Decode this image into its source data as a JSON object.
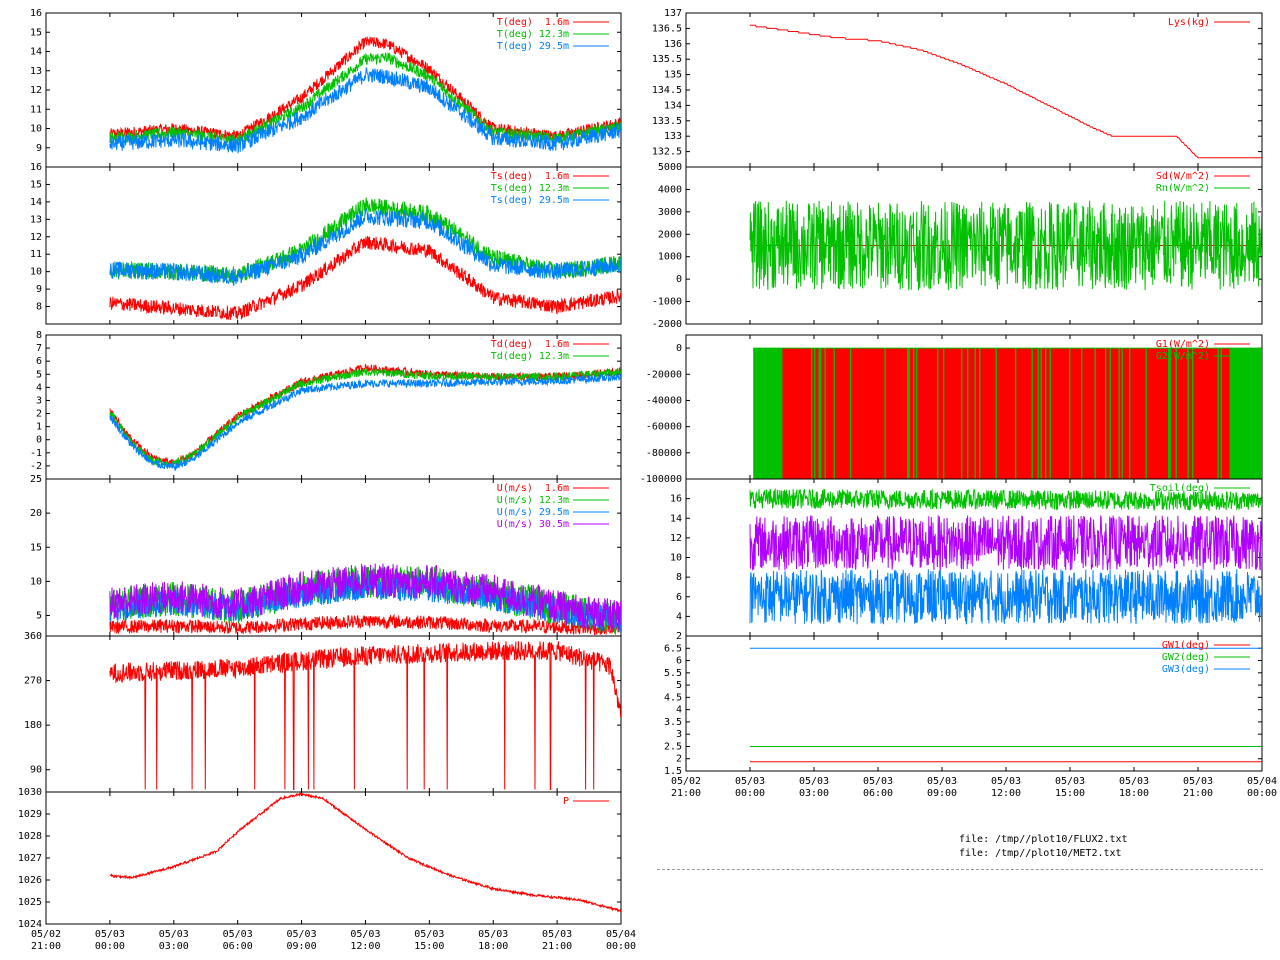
{
  "colors": {
    "red": "#ff0000",
    "green": "#00c000",
    "blue": "#0080ff",
    "purple": "#b000ff",
    "black": "#000000"
  },
  "files": [
    "file: /tmp//plot10/FLUX2.txt",
    "file: /tmp//plot10/MET2.txt"
  ],
  "x_axis": {
    "ticks": [
      {
        "date": "05/02",
        "time": "21:00",
        "hour": -3
      },
      {
        "date": "05/03",
        "time": "00:00",
        "hour": 0
      },
      {
        "date": "05/03",
        "time": "03:00",
        "hour": 3
      },
      {
        "date": "05/03",
        "time": "06:00",
        "hour": 6
      },
      {
        "date": "05/03",
        "time": "09:00",
        "hour": 9
      },
      {
        "date": "05/03",
        "time": "12:00",
        "hour": 12
      },
      {
        "date": "05/03",
        "time": "15:00",
        "hour": 15
      },
      {
        "date": "05/03",
        "time": "18:00",
        "hour": 18
      },
      {
        "date": "05/03",
        "time": "21:00",
        "hour": 21
      },
      {
        "date": "05/04",
        "time": "00:00",
        "hour": 24
      }
    ],
    "range": [
      -3,
      24
    ]
  },
  "chart_data": [
    {
      "id": "temp",
      "type": "line",
      "ylim": [
        8,
        16
      ],
      "yticks": [
        9,
        10,
        11,
        12,
        13,
        14,
        15,
        16
      ],
      "grid": false,
      "legend": "top-right",
      "series": [
        {
          "name": "T(deg)  1.6m",
          "color": "red",
          "x": [
            0,
            3,
            6,
            9,
            12,
            13,
            15,
            18,
            21,
            24
          ],
          "y": [
            9.7,
            10.0,
            9.6,
            11.6,
            14.5,
            14.4,
            13.1,
            10.0,
            9.6,
            10.3
          ],
          "noise": 0.3
        },
        {
          "name": "T(deg) 12.3m",
          "color": "green",
          "x": [
            0,
            3,
            6,
            9,
            12,
            13,
            15,
            18,
            21,
            24
          ],
          "y": [
            9.5,
            9.8,
            9.4,
            11.1,
            13.6,
            13.7,
            12.7,
            9.8,
            9.5,
            10.1
          ],
          "noise": 0.3
        },
        {
          "name": "T(deg) 29.5m",
          "color": "blue",
          "x": [
            0,
            3,
            6,
            9,
            12,
            13,
            15,
            18,
            21,
            24
          ],
          "y": [
            9.2,
            9.4,
            9.1,
            10.6,
            12.8,
            12.7,
            12.1,
            9.5,
            9.2,
            9.9
          ],
          "noise": 0.4
        }
      ]
    },
    {
      "id": "tsurf",
      "type": "line",
      "ylim": [
        7,
        16
      ],
      "yticks": [
        8,
        9,
        10,
        11,
        12,
        13,
        14,
        15,
        16
      ],
      "grid": false,
      "legend": "top-right",
      "series": [
        {
          "name": "Ts(deg)  1.6m",
          "color": "red",
          "x": [
            0,
            3,
            6,
            9,
            12,
            15,
            18,
            21,
            24
          ],
          "y": [
            8.2,
            7.9,
            7.6,
            9.2,
            11.7,
            11.2,
            8.5,
            8.0,
            8.6
          ],
          "noise": 0.4
        },
        {
          "name": "Ts(deg) 12.3m",
          "color": "green",
          "x": [
            0,
            3,
            6,
            9,
            12,
            15,
            18,
            21,
            24
          ],
          "y": [
            10.1,
            10.0,
            9.8,
            11.2,
            13.8,
            13.3,
            10.8,
            10.0,
            10.5
          ],
          "noise": 0.5
        },
        {
          "name": "Ts(deg) 29.5m",
          "color": "blue",
          "x": [
            0,
            3,
            6,
            9,
            12,
            15,
            18,
            21,
            24
          ],
          "y": [
            10.1,
            10.0,
            9.7,
            10.9,
            13.2,
            12.9,
            10.4,
            10.0,
            10.4
          ],
          "noise": 0.5
        }
      ]
    },
    {
      "id": "dew",
      "type": "line",
      "ylim": [
        -3,
        8
      ],
      "yticks": [
        -2,
        -1,
        0,
        1,
        2,
        3,
        4,
        5,
        6,
        7,
        8
      ],
      "grid": false,
      "legend": "top-right",
      "series": [
        {
          "name": "Td(deg)  1.6m",
          "color": "red",
          "x": [
            0,
            1,
            2,
            3,
            4,
            6,
            9,
            12,
            15,
            18,
            21,
            24
          ],
          "y": [
            2.2,
            0.0,
            -1.4,
            -1.8,
            -1.0,
            1.8,
            4.4,
            5.5,
            5.0,
            4.8,
            4.8,
            5.2
          ],
          "noise": 0.3
        },
        {
          "name": "Td(deg) 12.3m",
          "color": "green",
          "x": [
            0,
            1,
            2,
            3,
            4,
            6,
            9,
            12,
            15,
            18,
            21,
            24
          ],
          "y": [
            2.1,
            -0.2,
            -1.6,
            -1.9,
            -1.1,
            1.7,
            4.3,
            5.2,
            4.9,
            4.8,
            4.8,
            5.2
          ],
          "noise": 0.3
        },
        {
          "name": "",
          "color": "blue",
          "x": [
            0,
            1,
            2,
            3,
            4,
            6,
            9,
            12,
            15,
            18,
            21,
            24
          ],
          "y": [
            1.8,
            -0.4,
            -1.8,
            -2.1,
            -1.4,
            1.3,
            3.8,
            4.3,
            4.3,
            4.4,
            4.5,
            4.8
          ],
          "noise": 0.3
        }
      ]
    },
    {
      "id": "wind",
      "type": "line",
      "ylim": [
        2,
        25
      ],
      "yticks": [
        5,
        10,
        15,
        20,
        25
      ],
      "grid": false,
      "legend": "top-right",
      "series": [
        {
          "name": "U(m/s)  1.6m",
          "color": "red",
          "x": [
            0,
            3,
            6,
            9,
            12,
            15,
            18,
            21,
            24
          ],
          "y": [
            3.3,
            3.5,
            3.2,
            3.8,
            4.2,
            4.0,
            3.5,
            3.3,
            3.0
          ],
          "noise": 1.0
        },
        {
          "name": "U(m/s) 12.3m",
          "color": "green",
          "x": [
            0,
            3,
            6,
            9,
            12,
            15,
            18,
            21,
            24
          ],
          "y": [
            6.5,
            7.5,
            6.2,
            8.8,
            10.0,
            9.8,
            8.2,
            6.0,
            4.5
          ],
          "noise": 2.5
        },
        {
          "name": "U(m/s) 29.5m",
          "color": "blue",
          "x": [
            0,
            3,
            6,
            9,
            12,
            15,
            18,
            21,
            24
          ],
          "y": [
            6.0,
            7.0,
            6.0,
            8.2,
            9.2,
            9.0,
            7.7,
            5.7,
            4.2
          ],
          "noise": 2.0
        },
        {
          "name": "U(m/s) 30.5m",
          "color": "purple",
          "x": [
            0,
            3,
            6,
            9,
            12,
            15,
            18,
            21,
            24
          ],
          "y": [
            6.8,
            7.8,
            6.5,
            9.0,
            10.2,
            10.0,
            8.5,
            6.3,
            4.7
          ],
          "noise": 2.5
        }
      ]
    },
    {
      "id": "winddir",
      "type": "line",
      "ylim": [
        45,
        360
      ],
      "yticks": [
        90,
        180,
        270,
        360
      ],
      "grid": false,
      "legend": "top-right",
      "series": [
        {
          "name": "",
          "color": "red",
          "x": [
            0,
            3,
            6,
            9,
            12,
            15,
            18,
            21,
            23.5,
            24
          ],
          "y": [
            285,
            290,
            295,
            310,
            320,
            325,
            330,
            330,
            300,
            200
          ],
          "noise": 20
        }
      ]
    },
    {
      "id": "pressure",
      "type": "line",
      "ylim": [
        1024,
        1030
      ],
      "yticks": [
        1024,
        1025,
        1026,
        1027,
        1028,
        1029,
        1030
      ],
      "grid": false,
      "legend": "top-right",
      "series": [
        {
          "name": "P",
          "color": "red",
          "x": [
            0,
            1,
            3,
            5,
            6,
            8,
            9,
            10,
            12,
            14,
            16,
            18,
            20,
            22,
            24
          ],
          "y": [
            1026.2,
            1026.1,
            1026.6,
            1027.3,
            1028.2,
            1029.7,
            1029.9,
            1029.7,
            1028.3,
            1027.0,
            1026.2,
            1025.6,
            1025.3,
            1025.1,
            1024.6
          ],
          "noise": 0.05
        }
      ]
    },
    {
      "id": "lys",
      "type": "line",
      "ylim": [
        132,
        137
      ],
      "yticks": [
        132.5,
        133,
        133.5,
        134,
        134.5,
        135,
        135.5,
        136,
        136.5,
        137
      ],
      "grid": false,
      "legend": "top-right",
      "series": [
        {
          "name": "Lys(kg)",
          "color": "red",
          "x": [
            0,
            2,
            4,
            6,
            8,
            10,
            12,
            14,
            16,
            17,
            19,
            20,
            21,
            24
          ],
          "y": [
            136.6,
            136.4,
            136.2,
            136.1,
            135.8,
            135.3,
            134.7,
            134.0,
            133.3,
            133.0,
            133.0,
            133.0,
            132.3,
            132.3
          ],
          "noise": 0
        }
      ]
    },
    {
      "id": "rad",
      "type": "line",
      "ylim": [
        -2000,
        5000
      ],
      "yticks": [
        -2000,
        -1000,
        0,
        1000,
        2000,
        3000,
        4000,
        5000
      ],
      "grid": false,
      "legend": "top-right",
      "series": [
        {
          "name": "Sd(W/m^2)",
          "color": "red",
          "x": [
            0,
            24
          ],
          "y": [
            1500,
            1500
          ],
          "noise": 0
        },
        {
          "name": "Rn(W/m^2)",
          "color": "green",
          "x": [
            0,
            24
          ],
          "y": [
            1500,
            1500
          ],
          "noise": 2000
        }
      ]
    },
    {
      "id": "soilheat",
      "type": "bar",
      "ylim": [
        -100000,
        10000
      ],
      "yticks": [
        -100000,
        -80000,
        -60000,
        -40000,
        -20000,
        0
      ],
      "grid": false,
      "legend": "top-right",
      "series": [
        {
          "name": "G1(W/m^2)",
          "color": "red",
          "value": -100000
        },
        {
          "name": "G2(W/m^2)",
          "color": "green",
          "value": -100000
        }
      ]
    },
    {
      "id": "soiltemp",
      "type": "line",
      "ylim": [
        2,
        18
      ],
      "yticks": [
        2,
        4,
        6,
        8,
        10,
        12,
        14,
        16
      ],
      "grid": false,
      "legend": "top-right",
      "series": [
        {
          "name": "Tsoil(deg)",
          "color": "green",
          "x": [
            0,
            24
          ],
          "y": [
            16.0,
            15.8
          ],
          "noise": 1.0
        },
        {
          "name": "",
          "color": "purple",
          "x": [
            0,
            24
          ],
          "y": [
            11.5,
            11.5
          ],
          "noise": 2.8
        },
        {
          "name": "",
          "color": "blue",
          "x": [
            0,
            24
          ],
          "y": [
            6.0,
            6.0
          ],
          "noise": 2.8
        }
      ]
    },
    {
      "id": "groundwater",
      "type": "line",
      "ylim": [
        1.5,
        7
      ],
      "yticks": [
        1.5,
        2,
        2.5,
        3,
        3.5,
        4,
        4.5,
        5,
        5.5,
        6,
        6.5
      ],
      "grid": false,
      "legend": "top-right",
      "series": [
        {
          "name": "GW1(deg)",
          "color": "red",
          "x": [
            0,
            24
          ],
          "y": [
            1.88,
            1.88
          ],
          "noise": 0
        },
        {
          "name": "GW2(deg)",
          "color": "green",
          "x": [
            0,
            24
          ],
          "y": [
            2.5,
            2.5
          ],
          "noise": 0
        },
        {
          "name": "GW3(deg)",
          "color": "blue",
          "x": [
            0,
            24
          ],
          "y": [
            6.5,
            6.5
          ],
          "noise": 0
        }
      ]
    }
  ]
}
